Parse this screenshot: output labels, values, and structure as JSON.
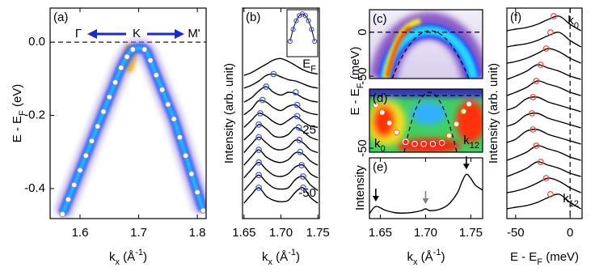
{
  "chart_data": [
    {
      "type": "scatter",
      "panel": "(a)",
      "xlim": [
        1.549,
        1.815
      ],
      "ylim": [
        -0.482,
        0.093
      ],
      "xticks": [
        1.6,
        1.7,
        1.8
      ],
      "yticks": [
        {
          "value": 0,
          "label": "0.0"
        },
        -0.2,
        -0.4
      ],
      "hline": 0,
      "xlabel": [
        {
          "text": "k"
        },
        {
          "text": "x",
          "sub": true
        },
        {
          "text": " (Å"
        },
        {
          "text": "-1",
          "sup": true
        },
        {
          "text": ")"
        }
      ],
      "ylabel": [
        {
          "text": "E - E"
        },
        {
          "text": "F",
          "sub": true
        },
        {
          "text": " (eV)"
        }
      ],
      "direction_labels": [
        "Γ",
        "K",
        "M'"
      ],
      "series": [
        {
          "color": "#ffffff",
          "edge": "#8888aa",
          "x": [
            1.57,
            1.58,
            1.59,
            1.6,
            1.61,
            1.62,
            1.63,
            1.64,
            1.65,
            1.66,
            1.67,
            1.68,
            1.69,
            1.71,
            1.72,
            1.73,
            1.74,
            1.75,
            1.76,
            1.77,
            1.78,
            1.79,
            1.8,
            1.81
          ],
          "values": [
            -0.47,
            -0.43,
            -0.39,
            -0.35,
            -0.31,
            -0.27,
            -0.23,
            -0.19,
            -0.15,
            -0.11,
            -0.07,
            -0.04,
            -0.02,
            -0.02,
            -0.05,
            -0.09,
            -0.13,
            -0.17,
            -0.21,
            -0.26,
            -0.31,
            -0.36,
            -0.41,
            -0.46
          ]
        }
      ]
    },
    {
      "type": "line",
      "panel": "(b)",
      "xlim": [
        1.648,
        1.752
      ],
      "ylim": [
        0,
        15
      ],
      "xticks": [
        1.65,
        {
          "value": 1.7,
          "label": "1.70"
        },
        1.75
      ],
      "xlabel": [
        {
          "text": "k"
        },
        {
          "text": "x",
          "sub": true
        },
        {
          "text": " (Å"
        },
        {
          "text": "-1",
          "sup": true
        },
        {
          "text": ")"
        }
      ],
      "ylabel": [
        {
          "text": "Intensity (arb. unit)"
        }
      ],
      "x": [
        1.65,
        1.66,
        1.67,
        1.68,
        1.69,
        1.7,
        1.71,
        1.72,
        1.73,
        1.74,
        1.75
      ],
      "series": [
        {
          "color": "#000000",
          "values": [
            10.2,
            10.4,
            10.7,
            11.0,
            11.3,
            11.4,
            11.2,
            10.9,
            10.6,
            10.4,
            10.3
          ],
          "label": [
            {
              "text": "E"
            },
            {
              "text": "F",
              "sub": true
            }
          ]
        },
        {
          "color": "#000000",
          "values": [
            9.3,
            9.5,
            9.8,
            10.2,
            10.3,
            10.1,
            9.9,
            9.8,
            9.6,
            9.4,
            9.3
          ]
        },
        {
          "color": "#000000",
          "values": [
            8.3,
            8.6,
            9.1,
            9.4,
            9.0,
            8.8,
            9.0,
            8.9,
            8.6,
            8.4,
            8.3
          ]
        },
        {
          "color": "#000000",
          "values": [
            7.4,
            7.8,
            8.4,
            8.3,
            7.9,
            7.7,
            8.0,
            8.1,
            7.7,
            7.5,
            7.4
          ]
        },
        {
          "color": "#000000",
          "values": [
            6.5,
            7.0,
            7.5,
            7.3,
            6.9,
            6.7,
            7.0,
            7.3,
            6.9,
            6.6,
            6.5
          ]
        },
        {
          "color": "#000000",
          "values": [
            5.6,
            6.1,
            6.7,
            6.4,
            5.9,
            5.8,
            6.0,
            6.5,
            6.2,
            5.8,
            5.6
          ],
          "label": "-25"
        },
        {
          "color": "#000000",
          "values": [
            4.7,
            5.3,
            5.8,
            5.4,
            5.0,
            4.9,
            5.1,
            5.6,
            5.4,
            4.9,
            4.7
          ]
        },
        {
          "color": "#000000",
          "values": [
            3.8,
            4.4,
            4.9,
            4.4,
            4.1,
            4.0,
            4.2,
            4.7,
            4.6,
            4.1,
            3.8
          ]
        },
        {
          "color": "#000000",
          "values": [
            2.9,
            3.5,
            4.0,
            3.5,
            3.1,
            3.0,
            3.2,
            3.7,
            3.8,
            3.2,
            2.9
          ]
        },
        {
          "color": "#000000",
          "values": [
            2.0,
            2.6,
            3.1,
            2.6,
            2.2,
            2.1,
            2.2,
            2.8,
            3.0,
            2.4,
            2.0
          ]
        },
        {
          "color": "#000000",
          "values": [
            1.1,
            1.7,
            2.2,
            1.6,
            1.3,
            1.2,
            1.3,
            1.9,
            2.2,
            1.5,
            1.1
          ],
          "label": "-50"
        }
      ],
      "peaks": {
        "color": "#4455dd",
        "x": [
          1.69,
          1.68,
          1.72,
          1.675,
          1.722,
          1.672,
          1.722,
          1.67,
          1.724,
          1.67,
          1.725,
          1.67,
          1.726,
          1.67,
          1.728,
          1.67,
          1.73,
          1.67,
          1.73
        ],
        "values": [
          10.3,
          9.4,
          9.0,
          8.45,
          8.1,
          7.5,
          7.3,
          6.7,
          6.5,
          5.8,
          5.6,
          4.9,
          4.75,
          4.0,
          3.8,
          3.1,
          3.0,
          2.2,
          2.2
        ]
      },
      "inset": {
        "color": "#3344cc",
        "xlim": [
          -1,
          1
        ],
        "ylim": [
          0,
          1.1
        ],
        "x": [
          -0.8,
          -0.6,
          -0.4,
          -0.2,
          0,
          0.2,
          0.4,
          0.6,
          0.8
        ],
        "values": [
          0.36,
          0.64,
          0.84,
          0.96,
          1,
          0.96,
          0.84,
          0.64,
          0.36
        ]
      }
    },
    {
      "type": "heatmap",
      "panel": "(c)",
      "ylim": [
        -52.7,
        25.5
      ],
      "yticks": [
        0,
        -50
      ],
      "hline": 0,
      "ylabel": [
        {
          "text": "E - E"
        },
        {
          "text": "F",
          "sub": true
        },
        {
          "text": " (meV)"
        }
      ]
    },
    {
      "type": "scatter",
      "panel": "(d)",
      "xlim": [
        1.638,
        1.763
      ],
      "ylim": [
        -53.8,
        6.2
      ],
      "yticks": [
        -50
      ],
      "hline": 0,
      "corner_labels": [
        [
          {
            "text": "k"
          },
          {
            "text": "0",
            "sub": true
          }
        ],
        [
          {
            "text": "k"
          },
          {
            "text": "12",
            "sub": true
          }
        ]
      ],
      "series": [
        {
          "color": "#ffffff",
          "edge": "#ff6a00",
          "x": [
            1.645,
            1.652,
            1.66,
            1.668,
            1.726,
            1.734,
            1.742,
            1.748
          ],
          "values": [
            -9,
            -16,
            -26,
            -35,
            -38,
            -27,
            -15,
            -8
          ]
        },
        {
          "color": "#ff2020",
          "edge": "#ffffff",
          "x": [
            1.678,
            1.688,
            1.698,
            1.708,
            1.718
          ],
          "values": [
            -44,
            -46,
            -46,
            -46,
            -45
          ]
        }
      ]
    },
    {
      "type": "line",
      "panel": "(e)",
      "xlim": [
        1.638,
        1.763
      ],
      "ylim": [
        0,
        10
      ],
      "xticks": [
        1.65,
        {
          "value": 1.7,
          "label": "1.70"
        },
        1.75
      ],
      "xlabel": [
        {
          "text": "k"
        },
        {
          "text": "x",
          "sub": true
        },
        {
          "text": " (Å"
        },
        {
          "text": "-1",
          "sup": true
        },
        {
          "text": ")"
        }
      ],
      "ylabel": [
        {
          "text": "Intensity"
        }
      ],
      "x": [
        1.638,
        1.645,
        1.655,
        1.665,
        1.675,
        1.685,
        1.695,
        1.7,
        1.705,
        1.715,
        1.725,
        1.735,
        1.74,
        1.745,
        1.75,
        1.755,
        1.763
      ],
      "series": [
        {
          "color": "#000000",
          "values": [
            0.8,
            2.0,
            1.4,
            1.0,
            0.9,
            1.0,
            1.3,
            1.6,
            1.3,
            1.5,
            2.3,
            4.2,
            6.0,
            7.3,
            6.6,
            5.5,
            4.7
          ]
        }
      ],
      "arrows": [
        {
          "x": 1.645,
          "color": "#000000"
        },
        {
          "x": 1.7,
          "color": "#808080"
        },
        {
          "x": 1.745,
          "color": "#000000"
        }
      ]
    },
    {
      "type": "line",
      "panel": "(f)",
      "xlim": [
        -58,
        11
      ],
      "ylim": [
        -0.5,
        12.5
      ],
      "xticks": [
        -50,
        0
      ],
      "vline": 0,
      "xlabel": [
        {
          "text": "E - E"
        },
        {
          "text": "F",
          "sub": true
        },
        {
          "text": " (meV)"
        }
      ],
      "ylabel": [
        {
          "text": "Intensity (arb. unit)"
        }
      ],
      "x": [
        -58,
        -50,
        -40,
        -30,
        -20,
        -10,
        0,
        10
      ],
      "series": [
        {
          "color": "#000000",
          "values": [
            11.1,
            11.2,
            11.3,
            11.5,
            11.8,
            12.0,
            11.5,
            11.1
          ],
          "label": [
            {
              "text": "k"
            },
            {
              "text": "0",
              "sub": true
            }
          ]
        },
        {
          "color": "#000000",
          "values": [
            10.1,
            10.2,
            10.3,
            10.5,
            10.8,
            11.0,
            10.5,
            10.1
          ]
        },
        {
          "color": "#000000",
          "values": [
            9.1,
            9.2,
            9.4,
            9.7,
            10.0,
            9.8,
            9.4,
            9.1
          ]
        },
        {
          "color": "#000000",
          "values": [
            8.1,
            8.3,
            8.6,
            9.0,
            8.8,
            8.6,
            8.3,
            8.1
          ]
        },
        {
          "color": "#000000",
          "values": [
            7.1,
            7.3,
            7.6,
            8.0,
            7.8,
            7.6,
            7.3,
            7.1
          ]
        },
        {
          "color": "#000000",
          "values": [
            6.2,
            6.4,
            6.9,
            7.0,
            6.7,
            6.5,
            6.3,
            6.1
          ]
        },
        {
          "color": "#000000",
          "values": [
            5.2,
            5.4,
            5.9,
            6.0,
            5.7,
            5.5,
            5.3,
            5.1
          ]
        },
        {
          "color": "#000000",
          "values": [
            4.2,
            4.4,
            4.9,
            5.0,
            4.7,
            4.5,
            4.3,
            4.1
          ]
        },
        {
          "color": "#000000",
          "values": [
            3.1,
            3.3,
            3.6,
            4.0,
            3.8,
            3.6,
            3.3,
            3.1
          ]
        },
        {
          "color": "#000000",
          "values": [
            2.1,
            2.3,
            2.6,
            3.0,
            2.8,
            2.6,
            2.3,
            2.1
          ]
        },
        {
          "color": "#000000",
          "values": [
            1.1,
            1.2,
            1.4,
            1.7,
            2.0,
            1.8,
            1.4,
            1.1
          ]
        },
        {
          "color": "#000000",
          "values": [
            0.1,
            0.2,
            0.3,
            0.5,
            0.8,
            1.0,
            0.5,
            0.1
          ],
          "label": [
            {
              "text": "k"
            },
            {
              "text": "12",
              "sub": true
            }
          ]
        }
      ],
      "peaks": {
        "color": "#ff4040",
        "x": [
          -15,
          -18,
          -22,
          -27,
          -31,
          -34,
          -35,
          -34,
          -31,
          -27,
          -22,
          -18
        ],
        "values": [
          12.0,
          11.0,
          10.0,
          9.0,
          8.0,
          7.0,
          6.0,
          5.0,
          4.0,
          3.0,
          2.0,
          1.0
        ]
      }
    }
  ]
}
